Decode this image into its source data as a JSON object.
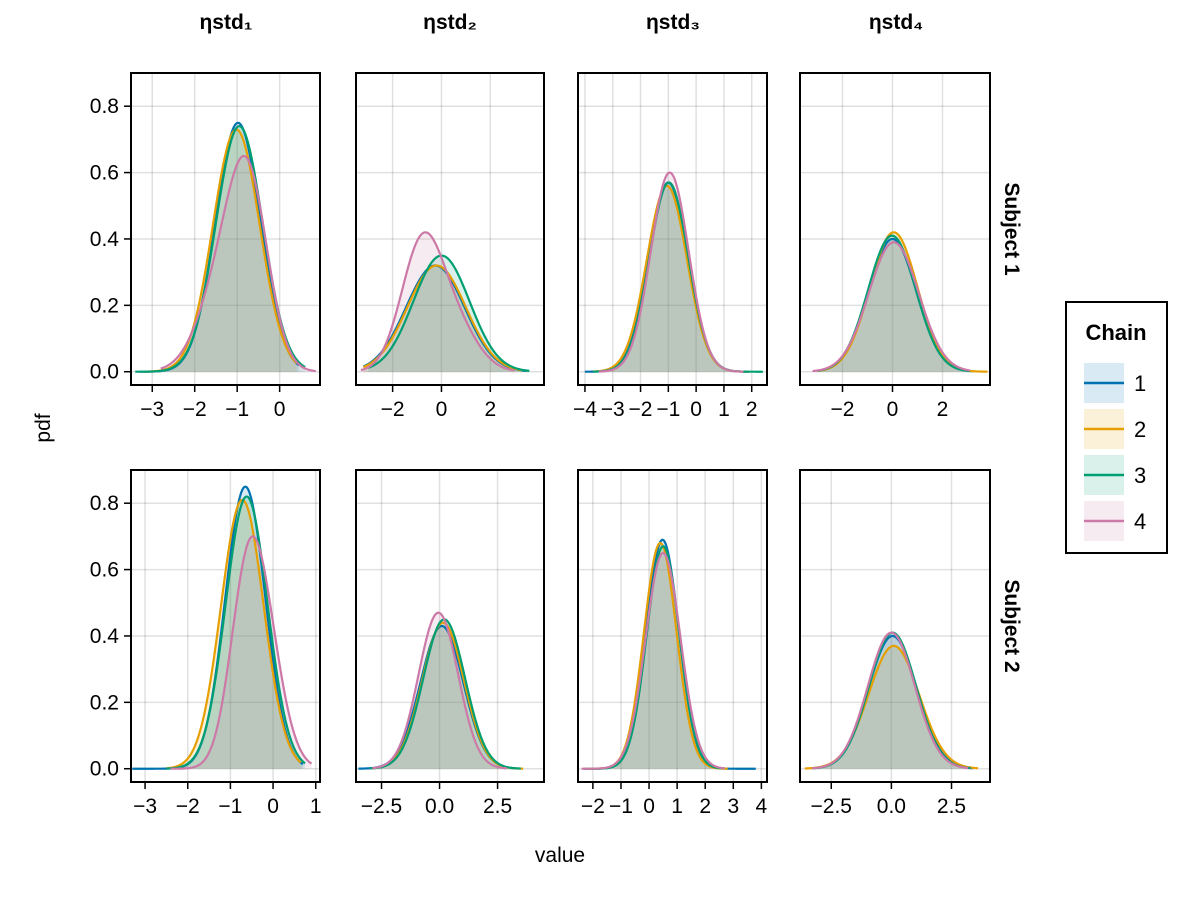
{
  "chart_data": {
    "type": "area",
    "title": "",
    "xlabel": "value",
    "ylabel": "pdf",
    "grid": true,
    "legend": {
      "title": "Chain",
      "placement": "right",
      "entries": [
        {
          "label": "1",
          "color": "#0072b2"
        },
        {
          "label": "2",
          "color": "#e69f00"
        },
        {
          "label": "3",
          "color": "#009e73"
        },
        {
          "label": "4",
          "color": "#cc79a7"
        }
      ]
    },
    "column_titles": [
      "ηstd₁",
      "ηstd₂",
      "ηstd₃",
      "ηstd₄"
    ],
    "row_titles": [
      "Subject 1",
      "Subject 2"
    ],
    "ylim": [
      -0.04,
      0.9
    ],
    "yticks": [
      0.0,
      0.2,
      0.4,
      0.6,
      0.8
    ],
    "ytick_labels": [
      "0.0",
      "0.2",
      "0.4",
      "0.6",
      "0.8"
    ],
    "fill_opacity": 0.15,
    "panels": [
      {
        "row": 0,
        "col": 0,
        "parameter": "ηstd₁",
        "subject": "Subject 1",
        "xlim": [
          -3.5,
          0.95
        ],
        "xticks": [
          -3,
          -2,
          -1,
          0
        ],
        "xtick_labels": [
          "−3",
          "−2",
          "−1",
          "0"
        ],
        "series": [
          {
            "chain": "1",
            "support": [
              -3.3,
              0.45
            ],
            "components": [
              [
                1.0,
                -0.98,
                0.53
              ]
            ],
            "peak": 0.75
          },
          {
            "chain": "2",
            "support": [
              -3.2,
              0.4
            ],
            "components": [
              [
                1.0,
                -1.02,
                0.55
              ]
            ],
            "peak": 0.73
          },
          {
            "chain": "3",
            "support": [
              -3.4,
              0.6
            ],
            "components": [
              [
                1.0,
                -0.95,
                0.55
              ]
            ],
            "peak": 0.74
          },
          {
            "chain": "4",
            "support": [
              -2.8,
              0.85
            ],
            "components": [
              [
                0.55,
                -0.7,
                0.45
              ],
              [
                0.45,
                -1.2,
                0.6
              ]
            ],
            "peak": 0.65
          }
        ]
      },
      {
        "row": 0,
        "col": 1,
        "parameter": "ηstd₂",
        "subject": "Subject 1",
        "xlim": [
          -3.5,
          4.2
        ],
        "xticks": [
          -2,
          0,
          2
        ],
        "xtick_labels": [
          "−2",
          "0",
          "2"
        ],
        "series": [
          {
            "chain": "1",
            "support": [
              -3.2,
              3.5
            ],
            "components": [
              [
                1.0,
                -0.25,
                1.2
              ]
            ],
            "peak": 0.32
          },
          {
            "chain": "2",
            "support": [
              -3.2,
              3.3
            ],
            "components": [
              [
                1.0,
                -0.2,
                1.2
              ]
            ],
            "peak": 0.32
          },
          {
            "chain": "3",
            "support": [
              -3.0,
              3.6
            ],
            "components": [
              [
                1.0,
                0.0,
                1.15
              ]
            ],
            "peak": 0.35
          },
          {
            "chain": "4",
            "support": [
              -3.3,
              3.0
            ],
            "components": [
              [
                0.75,
                -0.8,
                0.85
              ],
              [
                0.25,
                0.6,
                0.9
              ]
            ],
            "peak": 0.42
          }
        ]
      },
      {
        "row": 0,
        "col": 2,
        "parameter": "ηstd₃",
        "subject": "Subject 1",
        "xlim": [
          -4.25,
          2.55
        ],
        "xticks": [
          -4,
          -3,
          -2,
          -1,
          0,
          1,
          2
        ],
        "xtick_labels": [
          "−4",
          "−3",
          "−2",
          "−1",
          "0",
          "1",
          "2"
        ],
        "series": [
          {
            "chain": "1",
            "support": [
              -4.0,
              1.9
            ],
            "components": [
              [
                1.0,
                -1.0,
                0.7
              ]
            ],
            "peak": 0.57
          },
          {
            "chain": "2",
            "support": [
              -3.7,
              1.9
            ],
            "components": [
              [
                1.0,
                -1.05,
                0.72
              ]
            ],
            "peak": 0.56
          },
          {
            "chain": "3",
            "support": [
              -3.7,
              2.4
            ],
            "components": [
              [
                1.0,
                -0.98,
                0.7
              ]
            ],
            "peak": 0.57
          },
          {
            "chain": "4",
            "support": [
              -3.5,
              1.7
            ],
            "components": [
              [
                1.0,
                -0.95,
                0.68
              ]
            ],
            "peak": 0.6
          }
        ]
      },
      {
        "row": 0,
        "col": 3,
        "parameter": "ηstd₄",
        "subject": "Subject 1",
        "xlim": [
          -3.7,
          3.9
        ],
        "xticks": [
          -2,
          0,
          2
        ],
        "xtick_labels": [
          "−2",
          "0",
          "2"
        ],
        "series": [
          {
            "chain": "1",
            "support": [
              -3.0,
              3.2
            ],
            "components": [
              [
                1.0,
                0.0,
                0.95
              ]
            ],
            "peak": 0.4
          },
          {
            "chain": "2",
            "support": [
              -3.0,
              3.8
            ],
            "components": [
              [
                1.0,
                0.05,
                0.95
              ]
            ],
            "peak": 0.42
          },
          {
            "chain": "3",
            "support": [
              -3.0,
              3.1
            ],
            "components": [
              [
                1.0,
                -0.02,
                0.95
              ]
            ],
            "peak": 0.41
          },
          {
            "chain": "4",
            "support": [
              -3.2,
              3.1
            ],
            "components": [
              [
                1.0,
                0.05,
                1.0
              ]
            ],
            "peak": 0.39
          }
        ]
      },
      {
        "row": 1,
        "col": 0,
        "parameter": "ηstd₁",
        "subject": "Subject 2",
        "xlim": [
          -3.33,
          1.1
        ],
        "xticks": [
          -3,
          -2,
          -1,
          0,
          1
        ],
        "xtick_labels": [
          "−3",
          "−2",
          "−1",
          "0",
          "1"
        ],
        "series": [
          {
            "chain": "1",
            "support": [
              -3.3,
              0.7
            ],
            "components": [
              [
                1.0,
                -0.65,
                0.47
              ]
            ],
            "peak": 0.85
          },
          {
            "chain": "2",
            "support": [
              -2.5,
              0.65
            ],
            "components": [
              [
                1.0,
                -0.72,
                0.5
              ]
            ],
            "peak": 0.81
          },
          {
            "chain": "3",
            "support": [
              -2.5,
              0.75
            ],
            "components": [
              [
                1.0,
                -0.62,
                0.49
              ]
            ],
            "peak": 0.82
          },
          {
            "chain": "4",
            "support": [
              -2.4,
              0.9
            ],
            "components": [
              [
                0.5,
                -0.65,
                0.4
              ],
              [
                0.5,
                -0.25,
                0.45
              ]
            ],
            "peak": 0.7
          }
        ]
      },
      {
        "row": 1,
        "col": 1,
        "parameter": "ηstd₂",
        "subject": "Subject 2",
        "xlim": [
          -3.6,
          4.5
        ],
        "xticks": [
          -2.5,
          0.0,
          2.5
        ],
        "xtick_labels": [
          "−2.5",
          "0.0",
          "2.5"
        ],
        "series": [
          {
            "chain": "1",
            "support": [
              -3.5,
              3.3
            ],
            "components": [
              [
                1.0,
                0.1,
                0.92
              ]
            ],
            "peak": 0.43
          },
          {
            "chain": "2",
            "support": [
              -2.9,
              3.6
            ],
            "components": [
              [
                1.0,
                0.15,
                0.9
              ]
            ],
            "peak": 0.44
          },
          {
            "chain": "3",
            "support": [
              -3.0,
              3.5
            ],
            "components": [
              [
                1.0,
                0.2,
                0.9
              ]
            ],
            "peak": 0.45
          },
          {
            "chain": "4",
            "support": [
              -2.9,
              2.9
            ],
            "components": [
              [
                1.0,
                -0.05,
                0.85
              ]
            ],
            "peak": 0.47
          }
        ]
      },
      {
        "row": 1,
        "col": 2,
        "parameter": "ηstd₃",
        "subject": "Subject 2",
        "xlim": [
          -2.53,
          4.2
        ],
        "xticks": [
          -2,
          -1,
          0,
          1,
          2,
          3,
          4
        ],
        "xtick_labels": [
          "−2",
          "−1",
          "0",
          "1",
          "2",
          "3",
          "4"
        ],
        "series": [
          {
            "chain": "1",
            "support": [
              -2.3,
              3.8
            ],
            "components": [
              [
                1.0,
                0.48,
                0.58
              ]
            ],
            "peak": 0.69
          },
          {
            "chain": "2",
            "support": [
              -2.2,
              2.8
            ],
            "components": [
              [
                1.0,
                0.4,
                0.58
              ]
            ],
            "peak": 0.68
          },
          {
            "chain": "3",
            "support": [
              -2.1,
              2.6
            ],
            "components": [
              [
                1.0,
                0.5,
                0.58
              ]
            ],
            "peak": 0.67
          },
          {
            "chain": "4",
            "support": [
              -2.4,
              2.7
            ],
            "components": [
              [
                1.0,
                0.5,
                0.62
              ]
            ],
            "peak": 0.65
          }
        ]
      },
      {
        "row": 1,
        "col": 3,
        "parameter": "ηstd₄",
        "subject": "Subject 2",
        "xlim": [
          -3.8,
          4.1
        ],
        "xticks": [
          -2.5,
          0.0,
          2.5
        ],
        "xtick_labels": [
          "−2.5",
          "0.0",
          "2.5"
        ],
        "series": [
          {
            "chain": "1",
            "support": [
              -3.3,
              3.4
            ],
            "components": [
              [
                1.0,
                0.05,
                1.0
              ]
            ],
            "peak": 0.4
          },
          {
            "chain": "2",
            "support": [
              -3.6,
              3.6
            ],
            "components": [
              [
                1.0,
                0.1,
                1.05
              ]
            ],
            "peak": 0.37
          },
          {
            "chain": "3",
            "support": [
              -3.2,
              3.3
            ],
            "components": [
              [
                1.0,
                0.05,
                0.98
              ]
            ],
            "peak": 0.41
          },
          {
            "chain": "4",
            "support": [
              -3.3,
              3.2
            ],
            "components": [
              [
                1.0,
                0.0,
                0.98
              ]
            ],
            "peak": 0.41
          }
        ]
      }
    ]
  }
}
